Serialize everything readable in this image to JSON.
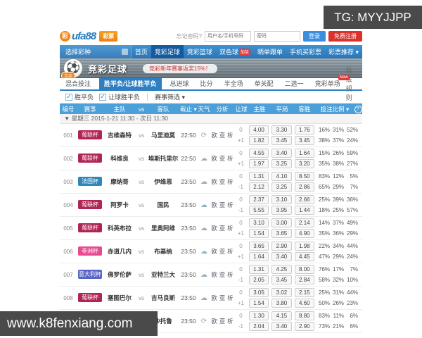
{
  "overlays": {
    "tg_badge": "TG: MYYJJPP",
    "watermark": "www.k8fenxiang.com"
  },
  "header": {
    "logo_mark": "彩",
    "logo_text": "ufa88",
    "logo_badge": "彩票",
    "forgot": "忘记密码?",
    "username_placeholder": "用户名/手机号码",
    "password_placeholder": "密码",
    "login_label": "登录",
    "register_label": "免费注册"
  },
  "nav": {
    "select_label": "选择彩种",
    "items": [
      {
        "label": "首页",
        "active": false
      },
      {
        "label": "竞彩足球",
        "active": true
      },
      {
        "label": "竞彩篮球",
        "active": false
      },
      {
        "label": "双色球",
        "active": false,
        "badge": "加奖"
      },
      {
        "label": "晒单跟单",
        "active": false
      },
      {
        "label": "手机买彩票",
        "active": false
      },
      {
        "label": "彩票推荐 ▾",
        "active": false
      }
    ]
  },
  "banner": {
    "ball_icon": "⚽",
    "ball_badge": "合买",
    "title": "竞彩足球",
    "subtitle": "竞彩新年赛事返奖15%！"
  },
  "tabs": {
    "items": [
      "混合投注",
      "胜平负/让球胜平负",
      "总进球",
      "比分",
      "半全场",
      "单关配",
      "二选一",
      "竞彩单场"
    ],
    "active_index": 1,
    "new_badge": "New",
    "rules_link": "玩法规则"
  },
  "filters": {
    "check1": "胜平负",
    "check2": "让球胜平负",
    "check_mark": "✓",
    "match_filter": "赛事筛选 ▾"
  },
  "table": {
    "headers": {
      "num": "编号",
      "league": "赛事",
      "home": "主队",
      "vs": "vs",
      "away": "客队",
      "time": "截止 ▾",
      "weather": "天气",
      "analysis": "分析",
      "handicap": "让球",
      "win": "主胜",
      "draw": "平局",
      "lose": "客胜",
      "ratio": "投注比例 ▾",
      "help": "?"
    },
    "date_row": "▼ 星期三 2015-1-21 11:30 - 次日 11:30",
    "analysis_links": [
      "欧",
      "亚",
      "析"
    ],
    "weather_glyphs": {
      "cloud": "☁",
      "refresh": "⟳"
    }
  },
  "rows": [
    {
      "id": "001",
      "league": "葡联杯",
      "color": "#b02553",
      "home": "吉维森特",
      "away": "马里迪莫",
      "time": "22:50",
      "weather": "refresh",
      "lines": [
        {
          "h": "0",
          "odds": [
            "4.00",
            "3.30",
            "1.76"
          ],
          "pct": [
            "16%",
            "31%",
            "52%"
          ]
        },
        {
          "h": "+1",
          "odds": [
            "1.82",
            "3.45",
            "3.45"
          ],
          "pct": [
            "38%",
            "37%",
            "24%"
          ]
        }
      ]
    },
    {
      "id": "002",
      "league": "葡联杯",
      "color": "#b02553",
      "home": "科维良",
      "away": "埃斯托里尔",
      "time": "22:50",
      "weather": "cloud",
      "lines": [
        {
          "h": "0",
          "odds": [
            "4.55",
            "3.40",
            "1.64"
          ],
          "pct": [
            "15%",
            "26%",
            "59%"
          ]
        },
        {
          "h": "+1",
          "odds": [
            "1.97",
            "3.25",
            "3.20"
          ],
          "pct": [
            "35%",
            "38%",
            "27%"
          ]
        }
      ]
    },
    {
      "id": "003",
      "league": "法国杯",
      "color": "#2f86ba",
      "home": "摩纳哥",
      "away": "伊维恩",
      "time": "23:50",
      "weather": "cloud",
      "lines": [
        {
          "h": "0",
          "odds": [
            "1.31",
            "4.10",
            "8.50"
          ],
          "pct": [
            "83%",
            "12%",
            "5%"
          ]
        },
        {
          "h": "-1",
          "odds": [
            "2.12",
            "3.25",
            "2.86"
          ],
          "pct": [
            "65%",
            "29%",
            "7%"
          ]
        }
      ]
    },
    {
      "id": "004",
      "league": "葡联杯",
      "color": "#b02553",
      "home": "阿罗卡",
      "away": "国民",
      "time": "23:50",
      "weather": "cloud",
      "lines": [
        {
          "h": "0",
          "odds": [
            "2.37",
            "3.10",
            "2.66"
          ],
          "pct": [
            "25%",
            "39%",
            "36%"
          ]
        },
        {
          "h": "-1",
          "odds": [
            "5.55",
            "3.95",
            "1.44"
          ],
          "pct": [
            "18%",
            "25%",
            "57%"
          ]
        }
      ]
    },
    {
      "id": "005",
      "league": "葡联杯",
      "color": "#b02553",
      "home": "科英布拉",
      "away": "里奥阿维",
      "time": "23:50",
      "weather": "cloud",
      "lines": [
        {
          "h": "0",
          "odds": [
            "3.10",
            "3.00",
            "2.14"
          ],
          "pct": [
            "14%",
            "37%",
            "49%"
          ]
        },
        {
          "h": "+1",
          "odds": [
            "1.54",
            "3.65",
            "4.90"
          ],
          "pct": [
            "35%",
            "36%",
            "29%"
          ]
        }
      ]
    },
    {
      "id": "006",
      "league": "非洲杯",
      "color": "#e84a90",
      "home": "赤道几内",
      "away": "布基纳",
      "time": "23:50",
      "weather": "cloud",
      "lines": [
        {
          "h": "0",
          "odds": [
            "3.65",
            "2.90",
            "1.98"
          ],
          "pct": [
            "22%",
            "34%",
            "44%"
          ]
        },
        {
          "h": "+1",
          "odds": [
            "1.64",
            "3.40",
            "4.45"
          ],
          "pct": [
            "47%",
            "29%",
            "24%"
          ]
        }
      ]
    },
    {
      "id": "007",
      "league": "意大利杯",
      "color": "#5a64c8",
      "home": "佛罗伦萨",
      "away": "亚特兰大",
      "time": "23:50",
      "weather": "cloud",
      "lines": [
        {
          "h": "0",
          "odds": [
            "1.31",
            "4.25",
            "8.00"
          ],
          "pct": [
            "76%",
            "17%",
            "7%"
          ]
        },
        {
          "h": "-1",
          "odds": [
            "2.05",
            "3.45",
            "2.84"
          ],
          "pct": [
            "58%",
            "32%",
            "10%"
          ]
        }
      ]
    },
    {
      "id": "008",
      "league": "葡联杯",
      "color": "#b02553",
      "home": "塞图巴尔",
      "away": "吉马良斯",
      "time": "23:50",
      "weather": "cloud",
      "lines": [
        {
          "h": "0",
          "odds": [
            "3.05",
            "3.02",
            "2.15"
          ],
          "pct": [
            "25%",
            "31%",
            "44%"
          ]
        },
        {
          "h": "+1",
          "odds": [
            "1.54",
            "3.80",
            "4.60"
          ],
          "pct": [
            "50%",
            "26%",
            "23%"
          ]
        }
      ]
    },
    {
      "id": "009",
      "league": "法国杯",
      "color": "#2f86ba",
      "home": "甘冈",
      "away": "沙托鲁",
      "time": "23:50",
      "weather": "refresh",
      "lines": [
        {
          "h": "0",
          "odds": [
            "1.30",
            "4.15",
            "8.80"
          ],
          "pct": [
            "83%",
            "11%",
            "6%"
          ]
        },
        {
          "h": "-1",
          "odds": [
            "2.04",
            "3.40",
            "2.90"
          ],
          "pct": [
            "73%",
            "21%",
            "6%"
          ]
        }
      ]
    }
  ]
}
